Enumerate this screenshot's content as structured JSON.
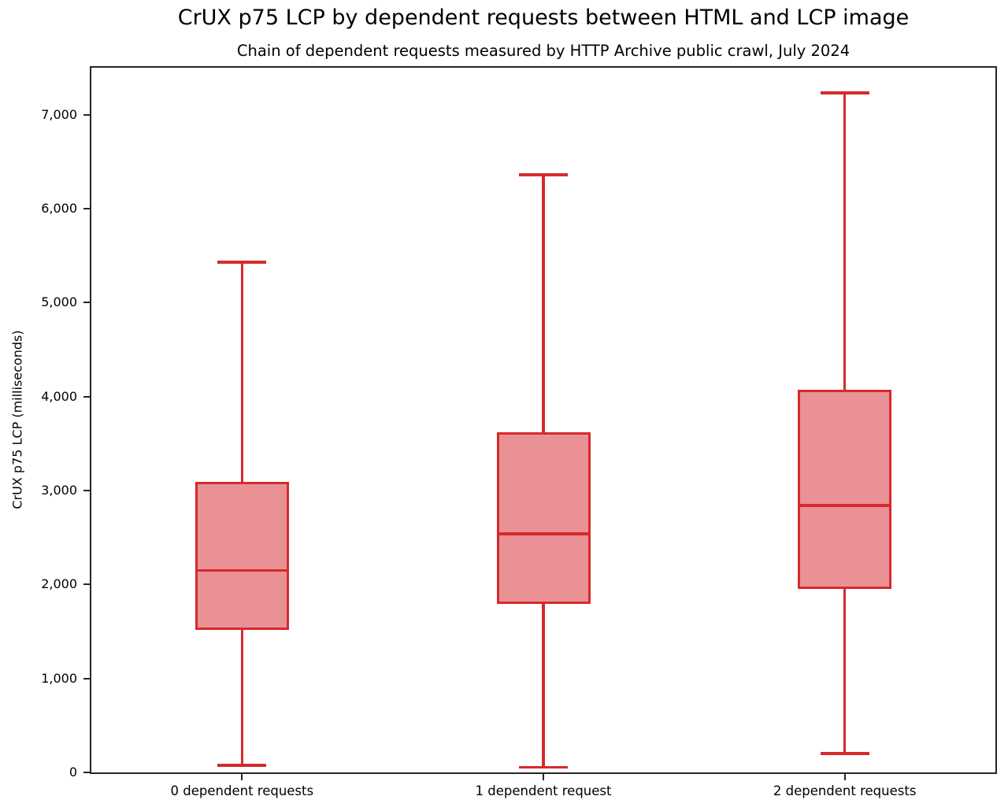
{
  "title": "CrUX p75 LCP by dependent requests between HTML and LCP image",
  "subtitle": "Chain of dependent requests measured by HTTP Archive public crawl, July 2024",
  "chart_data": {
    "type": "boxplot",
    "title": "CrUX p75 LCP by dependent requests between HTML and LCP image",
    "subtitle": "Chain of dependent requests measured by HTTP Archive public crawl, July 2024",
    "ylabel": "CrUX p75 LCP (milliseconds)",
    "xlabel": "",
    "categories": [
      "0 dependent requests",
      "1 dependent request",
      "2 dependent requests"
    ],
    "series": [
      {
        "name": "0 dependent requests",
        "whisker_low": 75,
        "q1": 1520,
        "median": 2150,
        "q3": 3090,
        "whisker_high": 5430
      },
      {
        "name": "1 dependent request",
        "whisker_low": 55,
        "q1": 1790,
        "median": 2540,
        "q3": 3620,
        "whisker_high": 6360
      },
      {
        "name": "2 dependent requests",
        "whisker_low": 200,
        "q1": 1950,
        "median": 2840,
        "q3": 4070,
        "whisker_high": 7230
      }
    ],
    "unit": "milliseconds",
    "ylim": [
      0,
      7500
    ],
    "yticks": [
      0,
      1000,
      2000,
      3000,
      4000,
      5000,
      6000,
      7000
    ],
    "ytick_labels": [
      "0",
      "1,000",
      "2,000",
      "3,000",
      "4,000",
      "5,000",
      "6,000",
      "7,000"
    ],
    "grid": false,
    "legend_position": "none",
    "colors": {
      "box_edge": "#d62a2d",
      "box_fill": "#ea9196",
      "axis": "#262626",
      "text": "#000000",
      "background": "#ffffff"
    }
  }
}
